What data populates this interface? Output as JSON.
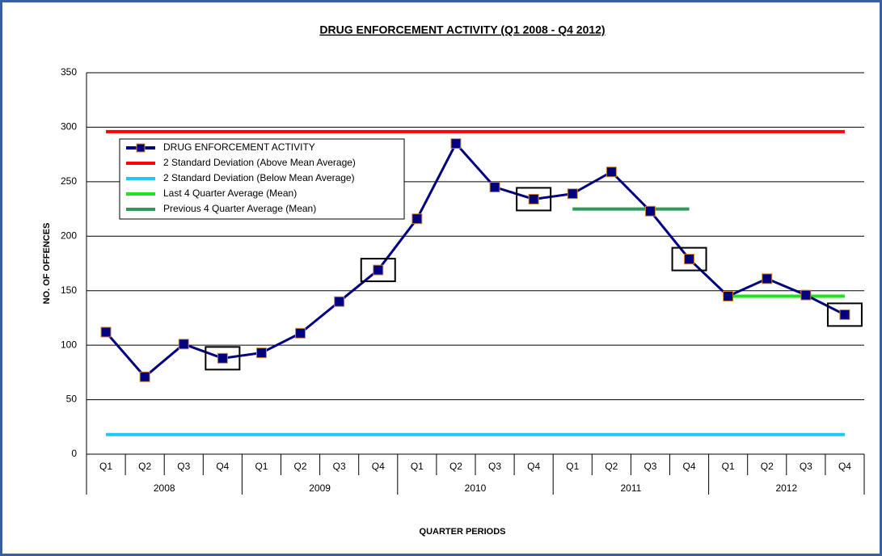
{
  "chart_data": {
    "type": "line",
    "title": "DRUG ENFORCEMENT ACTIVITY (Q1 2008 - Q4 2012)",
    "x_label": "QUARTER PERIODS",
    "y_label": "NO. OF OFFENCES",
    "categories": [
      "Q1",
      "Q2",
      "Q3",
      "Q4",
      "Q1",
      "Q2",
      "Q3",
      "Q4",
      "Q1",
      "Q2",
      "Q3",
      "Q4",
      "Q1",
      "Q2",
      "Q3",
      "Q4",
      "Q1",
      "Q2",
      "Q3",
      "Q4"
    ],
    "years": [
      "2008",
      "2009",
      "2010",
      "2011",
      "2012"
    ],
    "series": [
      {
        "name": "DRUG ENFORCEMENT ACTIVITY",
        "color": "#000080",
        "values": [
          112,
          71,
          101,
          88,
          93,
          111,
          140,
          169,
          216,
          285,
          245,
          234,
          239,
          259,
          223,
          179,
          145,
          161,
          146,
          128
        ]
      },
      {
        "name": "2 Standard Deviation (Above Mean Average)",
        "color": "#ff0000",
        "values": [
          296,
          296,
          296,
          296,
          296,
          296,
          296,
          296,
          296,
          296,
          296,
          296,
          296,
          296,
          296,
          296,
          296,
          296,
          296,
          296
        ]
      },
      {
        "name": "2 Standard Deviation (Below Mean Average)",
        "color": "#1ec8f0",
        "values": [
          18,
          18,
          18,
          18,
          18,
          18,
          18,
          18,
          18,
          18,
          18,
          18,
          18,
          18,
          18,
          18,
          18,
          18,
          18,
          18
        ]
      },
      {
        "name": "Last 4 Quarter Average (Mean)",
        "color": "#22e022",
        "values": [
          null,
          null,
          null,
          null,
          null,
          null,
          null,
          null,
          null,
          null,
          null,
          null,
          null,
          null,
          null,
          null,
          145,
          145,
          145,
          145
        ]
      },
      {
        "name": "Previous 4 Quarter Average (Mean)",
        "color": "#2e9a5a",
        "values": [
          null,
          null,
          null,
          null,
          null,
          null,
          null,
          null,
          null,
          null,
          null,
          null,
          225,
          225,
          225,
          225,
          null,
          null,
          null,
          null
        ]
      }
    ],
    "ylim": [
      0,
      350
    ],
    "yticks": [
      0,
      50,
      100,
      150,
      200,
      250,
      300,
      350
    ],
    "grid": true
  }
}
